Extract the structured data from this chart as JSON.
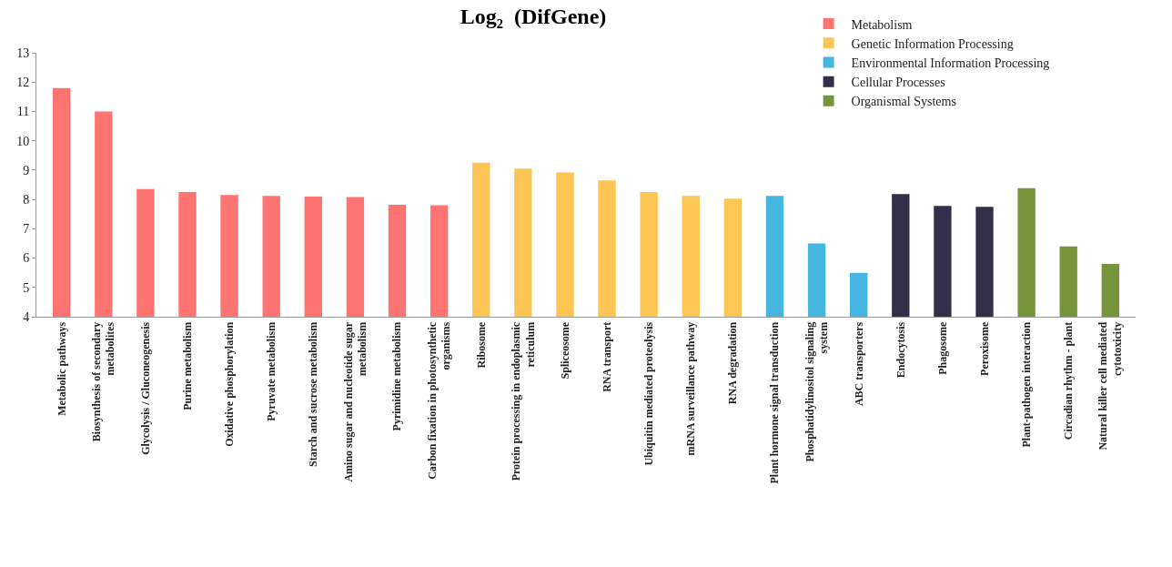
{
  "chart_data": {
    "type": "bar",
    "title": "Log₂  (DifGene)",
    "categories": [
      "Metabolic pathways",
      "Biosynthesis of secondary metabolites",
      "Glycolysis / Gluconeogenesis",
      "Purine metabolism",
      "Oxidative phosphorylation",
      "Pyruvate metabolism",
      "Starch and sucrose metabolism",
      "Amino sugar and nucleotide sugar metabolism",
      "Pyrimidine metabolism",
      "Carbon fixation in photosynthetic organisms",
      "Ribosome",
      "Protein processing in endoplasmic reticulum",
      "Spliceosome",
      "RNA transport",
      "Ubiquitin mediated proteolysis",
      "mRNA surveillance pathway",
      "RNA degradation",
      "Plant hormone signal transduction",
      "Phosphatidylinositol signaling system",
      "ABC transporters",
      "Endocytosis",
      "Phagosome",
      "Peroxisome",
      "Plant-pathogen interaction",
      "Circadian rhythm - plant",
      "Natural killer cell mediated cytotoxicity"
    ],
    "series": [
      {
        "name": "Metabolism",
        "color": "#fe7473",
        "values": [
          11.8,
          11.0,
          8.35,
          8.25,
          8.15,
          8.12,
          8.1,
          8.08,
          7.82,
          7.8,
          null,
          null,
          null,
          null,
          null,
          null,
          null,
          null,
          null,
          null,
          null,
          null,
          null,
          null,
          null,
          null
        ]
      },
      {
        "name": "Genetic Information Processing",
        "color": "#fdc654",
        "values": [
          null,
          null,
          null,
          null,
          null,
          null,
          null,
          null,
          null,
          null,
          9.25,
          9.05,
          8.92,
          8.65,
          8.25,
          8.12,
          8.03,
          null,
          null,
          null,
          null,
          null,
          null,
          null,
          null,
          null
        ]
      },
      {
        "name": "Environmental Information Processing",
        "color": "#45b6df",
        "values": [
          null,
          null,
          null,
          null,
          null,
          null,
          null,
          null,
          null,
          null,
          null,
          null,
          null,
          null,
          null,
          null,
          null,
          8.12,
          6.5,
          5.5,
          null,
          null,
          null,
          null,
          null,
          null
        ]
      },
      {
        "name": "Cellular Processes",
        "color": "#332f48",
        "values": [
          null,
          null,
          null,
          null,
          null,
          null,
          null,
          null,
          null,
          null,
          null,
          null,
          null,
          null,
          null,
          null,
          null,
          null,
          null,
          null,
          8.18,
          7.78,
          7.75,
          null,
          null,
          null
        ]
      },
      {
        "name": "Organismal Systems",
        "color": "#76953a",
        "values": [
          null,
          null,
          null,
          null,
          null,
          null,
          null,
          null,
          null,
          null,
          null,
          null,
          null,
          null,
          null,
          null,
          null,
          null,
          null,
          null,
          null,
          null,
          null,
          8.38,
          6.4,
          5.8
        ]
      }
    ],
    "ylim": [
      4,
      13
    ],
    "yticks": [
      4,
      5,
      6,
      7,
      8,
      9,
      10,
      11,
      12,
      13
    ],
    "grid": false,
    "legend": "top right"
  }
}
